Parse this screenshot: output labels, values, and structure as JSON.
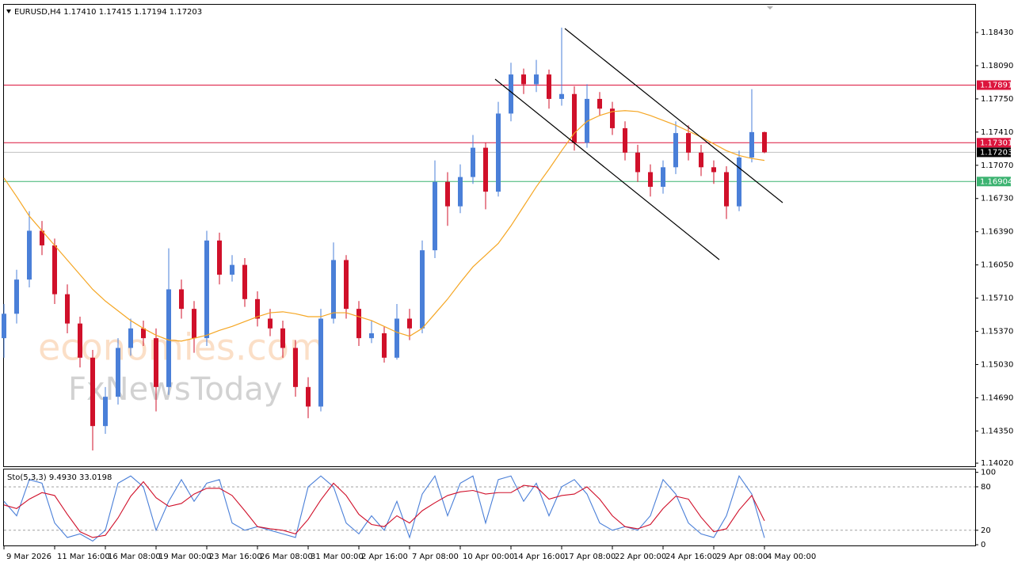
{
  "chart_data": [
    {
      "type": "candlestick",
      "title": "EURUSD,H4 1.17410 1.17415 1.17194 1.17203",
      "watermark": [
        "economies.com",
        "FxNewsToday"
      ],
      "categories": [
        "9 Mar 2026",
        null,
        null,
        null,
        "11 Mar 16:00",
        null,
        null,
        null,
        "16 Mar 08:00",
        null,
        null,
        null,
        "19 Mar 00:00",
        null,
        null,
        null,
        "23 Mar 16:00",
        null,
        null,
        null,
        "26 Mar 08:00",
        null,
        null,
        null,
        "31 Mar 00:00",
        null,
        null,
        null,
        "2 Apr 16:00",
        null,
        null,
        null,
        "7 Apr 08:00",
        null,
        null,
        null,
        "10 Apr 00:00",
        null,
        null,
        null,
        "14 Apr 16:00",
        null,
        null,
        null,
        "17 Apr 08:00",
        null,
        null,
        null,
        "22 Apr 00:00",
        null,
        null,
        null,
        "24 Apr 16:00",
        null,
        null,
        null,
        "29 Apr 08:00",
        null,
        null,
        null,
        "4 May 00:00"
      ],
      "open": [
        1.153,
        1.1555,
        1.159,
        1.164,
        1.1625,
        1.1575,
        1.1545,
        1.151,
        1.144,
        1.147,
        1.152,
        1.154,
        1.153,
        1.148,
        1.158,
        1.156,
        1.153,
        1.163,
        1.1595,
        1.1605,
        1.157,
        1.155,
        1.154,
        1.152,
        1.148,
        1.146,
        1.155,
        1.161,
        1.156,
        1.153,
        1.1535,
        1.151,
        1.155,
        1.154,
        1.162,
        1.169,
        1.1665,
        1.1695,
        1.1725,
        1.168,
        1.176,
        1.18,
        1.179,
        1.18,
        1.1775,
        1.178,
        1.173,
        1.1775,
        1.1765,
        1.1745,
        1.172,
        1.17,
        1.1685,
        1.1705,
        1.174,
        1.172,
        1.1705,
        1.17,
        1.1665,
        1.1715,
        1.1741
      ],
      "high": [
        1.1565,
        1.16,
        1.166,
        1.165,
        1.1632,
        1.1585,
        1.1552,
        1.1518,
        1.148,
        1.153,
        1.155,
        1.1548,
        1.154,
        1.1622,
        1.159,
        1.1568,
        1.164,
        1.1638,
        1.1615,
        1.1612,
        1.1578,
        1.156,
        1.1548,
        1.1528,
        1.149,
        1.156,
        1.1628,
        1.1615,
        1.1568,
        1.1548,
        1.1542,
        1.1565,
        1.156,
        1.163,
        1.1712,
        1.17,
        1.1708,
        1.1738,
        1.173,
        1.1772,
        1.1812,
        1.1806,
        1.1815,
        1.1805,
        1.1848,
        1.1788,
        1.179,
        1.1782,
        1.1772,
        1.1752,
        1.1728,
        1.1708,
        1.1712,
        1.1752,
        1.1748,
        1.1728,
        1.1712,
        1.1706,
        1.1722,
        1.1785,
        1.17415
      ],
      "low": [
        1.151,
        1.1545,
        1.1582,
        1.1615,
        1.1565,
        1.1535,
        1.15,
        1.1415,
        1.1432,
        1.1462,
        1.1512,
        1.1522,
        1.1455,
        1.1472,
        1.155,
        1.1515,
        1.1522,
        1.1585,
        1.1588,
        1.1562,
        1.1542,
        1.1532,
        1.151,
        1.147,
        1.1448,
        1.1455,
        1.1545,
        1.155,
        1.1522,
        1.1525,
        1.1505,
        1.1508,
        1.1528,
        1.1535,
        1.1612,
        1.1645,
        1.1658,
        1.1688,
        1.1662,
        1.1675,
        1.1752,
        1.178,
        1.1782,
        1.1765,
        1.1768,
        1.1722,
        1.1725,
        1.1758,
        1.1738,
        1.1712,
        1.169,
        1.1675,
        1.1678,
        1.1698,
        1.1712,
        1.1696,
        1.1688,
        1.1652,
        1.166,
        1.171,
        1.17194
      ],
      "close": [
        1.1555,
        1.159,
        1.164,
        1.1625,
        1.1575,
        1.1545,
        1.151,
        1.144,
        1.147,
        1.152,
        1.154,
        1.153,
        1.148,
        1.158,
        1.156,
        1.153,
        1.163,
        1.1595,
        1.1605,
        1.157,
        1.155,
        1.154,
        1.152,
        1.148,
        1.146,
        1.155,
        1.161,
        1.156,
        1.153,
        1.1535,
        1.151,
        1.155,
        1.154,
        1.162,
        1.169,
        1.1665,
        1.1695,
        1.1725,
        1.168,
        1.176,
        1.18,
        1.179,
        1.18,
        1.1775,
        1.178,
        1.173,
        1.1775,
        1.1765,
        1.1745,
        1.172,
        1.17,
        1.1685,
        1.1705,
        1.174,
        1.172,
        1.1705,
        1.17,
        1.1665,
        1.1715,
        1.1741,
        1.17203
      ],
      "up_color": "#4a7fd8",
      "down_color": "#d0102a",
      "ma": {
        "color": "#f5a623",
        "values": [
          1.1694,
          1.1675,
          1.1655,
          1.164,
          1.1625,
          1.161,
          1.1595,
          1.158,
          1.1568,
          1.1558,
          1.1548,
          1.154,
          1.1533,
          1.1528,
          1.1527,
          1.153,
          1.1533,
          1.1538,
          1.1542,
          1.1547,
          1.1552,
          1.1556,
          1.1557,
          1.1555,
          1.1552,
          1.1552,
          1.1556,
          1.1556,
          1.1552,
          1.1548,
          1.1542,
          1.1536,
          1.1532,
          1.154,
          1.1555,
          1.157,
          1.1587,
          1.1603,
          1.1615,
          1.1627,
          1.1645,
          1.1665,
          1.1685,
          1.1703,
          1.1722,
          1.174,
          1.1752,
          1.1758,
          1.1762,
          1.1763,
          1.1762,
          1.1758,
          1.1753,
          1.1748,
          1.1742,
          1.1736,
          1.1729,
          1.1722,
          1.1717,
          1.1714,
          1.1712
        ]
      },
      "levels": [
        {
          "value": 1.17891,
          "color": "#dc143c"
        },
        {
          "value": 1.17301,
          "color": "#dc143c"
        },
        {
          "value": 1.16904,
          "color": "#3cb371"
        },
        {
          "value": 1.17203,
          "color": "#000000",
          "line_color": "#c0c0c0"
        }
      ],
      "ylim": [
        1.13988,
        1.18714
      ],
      "yticks": [
        {
          "value": 1.1843,
          "label": "1.18430"
        },
        {
          "value": 1.1809,
          "label": "1.18090"
        },
        {
          "value": 1.1775,
          "label": "1.17750"
        },
        {
          "value": 1.1741,
          "label": "1.17410"
        },
        {
          "value": 1.1707,
          "label": "1.17070"
        },
        {
          "value": 1.1673,
          "label": "1.16730"
        },
        {
          "value": 1.1639,
          "label": "1.16390"
        },
        {
          "value": 1.1605,
          "label": "1.16050"
        },
        {
          "value": 1.1571,
          "label": "1.15710"
        },
        {
          "value": 1.1537,
          "label": "1.15370"
        },
        {
          "value": 1.1503,
          "label": "1.15030"
        },
        {
          "value": 1.1469,
          "label": "1.14690"
        },
        {
          "value": 1.1435,
          "label": "1.14350"
        },
        {
          "value": 1.1402,
          "label": "1.14020"
        }
      ]
    },
    {
      "type": "line",
      "title": "Sto(5,3,3) 9.4930 33.0198",
      "series": [
        {
          "color": "#4a7fd8",
          "values": [
            60,
            40,
            90,
            85,
            30,
            10,
            15,
            5,
            20,
            85,
            95,
            80,
            20,
            60,
            90,
            60,
            85,
            90,
            30,
            20,
            25,
            20,
            15,
            10,
            80,
            95,
            80,
            30,
            15,
            40,
            20,
            60,
            10,
            70,
            95,
            40,
            85,
            95,
            30,
            90,
            95,
            60,
            85,
            40,
            80,
            90,
            70,
            30,
            20,
            25,
            20,
            40,
            90,
            70,
            30,
            15,
            10,
            40,
            95,
            70,
            9.493
          ]
        },
        {
          "color": "#d0102a",
          "values": [
            55,
            50,
            63,
            72,
            68,
            42,
            18,
            10,
            13,
            37,
            67,
            87,
            65,
            53,
            57,
            70,
            78,
            78,
            68,
            47,
            25,
            22,
            20,
            15,
            35,
            62,
            85,
            68,
            42,
            28,
            25,
            40,
            30,
            47,
            58,
            68,
            73,
            75,
            70,
            72,
            72,
            82,
            80,
            63,
            68,
            70,
            80,
            63,
            40,
            25,
            22,
            28,
            50,
            67,
            63,
            38,
            18,
            22,
            48,
            68,
            33.0198
          ]
        }
      ],
      "levels": [
        80,
        20
      ],
      "ylim": [
        -1,
        104
      ],
      "yticks": [
        100,
        80,
        20,
        0
      ]
    }
  ]
}
